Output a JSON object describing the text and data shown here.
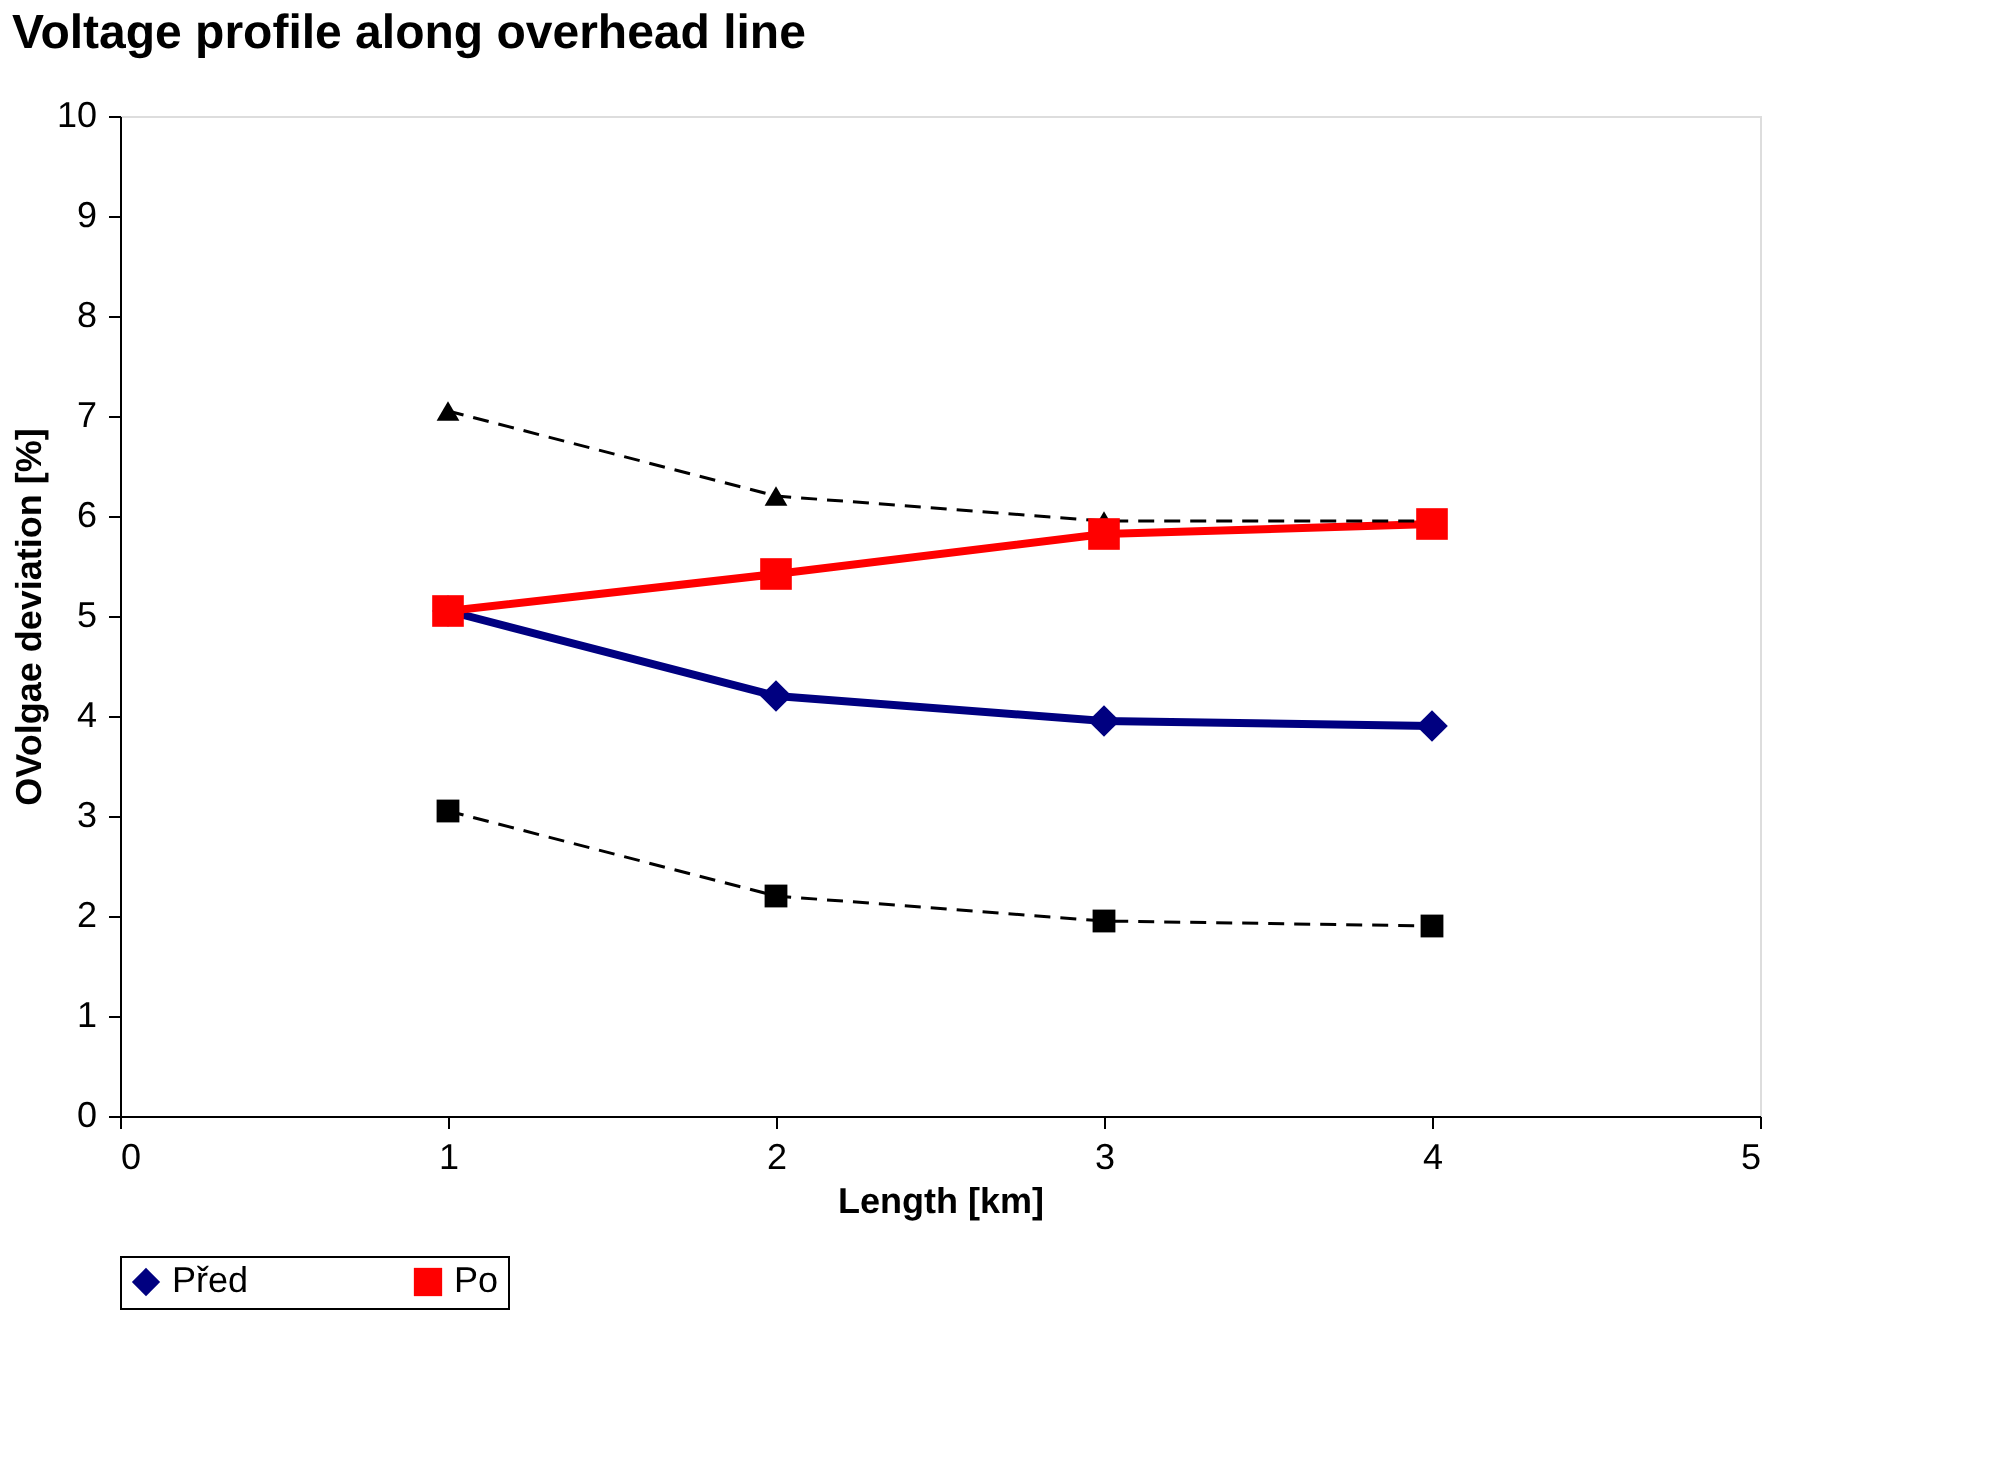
{
  "chart_data": {
    "type": "line",
    "title": "Voltage profile along overhead line",
    "xlabel": "Length [km]",
    "ylabel": "OVolgae deviation [%]",
    "x": [
      1,
      2,
      3,
      4
    ],
    "xlim": [
      0,
      5
    ],
    "xticks": [
      0,
      1,
      2,
      3,
      4,
      5
    ],
    "ylim": [
      0,
      10
    ],
    "yticks": [
      0,
      1,
      2,
      3,
      4,
      5,
      6,
      7,
      8,
      9,
      10
    ],
    "grid": false,
    "legend": "bottom",
    "series": [
      {
        "name": "Před",
        "color": "#000080",
        "values": [
          5.05,
          4.2,
          3.95,
          3.9
        ],
        "marker": "diamond",
        "line_style": "solid"
      },
      {
        "name": "Po",
        "color": "#ff0000",
        "values": [
          5.05,
          5.42,
          5.82,
          5.92
        ],
        "marker": "square",
        "line_style": "solid"
      },
      {
        "color": "#000000",
        "values": [
          7.05,
          6.2,
          5.95,
          5.95
        ],
        "marker": "triangle",
        "line_style": "dashed"
      },
      {
        "color": "#000000",
        "values": [
          3.05,
          2.2,
          1.95,
          1.9
        ],
        "marker": "square",
        "line_style": "dashed"
      }
    ]
  }
}
